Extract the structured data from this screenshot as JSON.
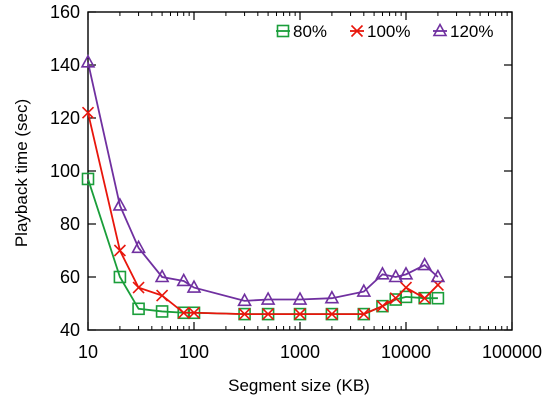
{
  "chart_data": {
    "type": "line",
    "xlabel": "Segment size (KB)",
    "ylabel": "Playback time (sec)",
    "xscale": "log",
    "xlim": [
      10,
      100000
    ],
    "ylim": [
      40,
      160
    ],
    "x_ticks": [
      10,
      100,
      1000,
      10000,
      100000
    ],
    "x_tick_labels": [
      "10",
      "100",
      "1000",
      "10000",
      "100000"
    ],
    "y_ticks": [
      40,
      60,
      80,
      100,
      120,
      140,
      160
    ],
    "y_tick_labels": [
      "40",
      "60",
      "80",
      "100",
      "120",
      "140",
      "160"
    ],
    "grid": false,
    "legend_position": "top-right",
    "series": [
      {
        "name": "80%",
        "color": "#1a9e3a",
        "marker": "square",
        "x": [
          10,
          20,
          30,
          50,
          80,
          100,
          300,
          500,
          1000,
          2000,
          4000,
          6000,
          8000,
          10000,
          15000,
          20000
        ],
        "y": [
          97,
          60,
          48,
          47,
          46.5,
          46.5,
          46,
          46,
          46,
          46,
          46,
          49,
          51.5,
          52.5,
          52,
          52
        ]
      },
      {
        "name": "100%",
        "color": "#e8160c",
        "marker": "x",
        "x": [
          10,
          20,
          30,
          50,
          80,
          100,
          300,
          500,
          1000,
          2000,
          4000,
          6000,
          8000,
          10000,
          15000,
          20000
        ],
        "y": [
          122,
          70,
          56,
          53,
          46.5,
          46.5,
          46,
          46,
          46,
          46,
          46,
          49,
          52,
          56,
          52,
          57
        ]
      },
      {
        "name": "120%",
        "color": "#7030a0",
        "marker": "triangle",
        "x": [
          10,
          20,
          30,
          50,
          80,
          100,
          300,
          500,
          1000,
          2000,
          4000,
          6000,
          8000,
          10000,
          15000,
          20000
        ],
        "y": [
          141,
          87,
          71,
          60,
          58.5,
          56,
          51,
          51.5,
          51.5,
          52,
          54.5,
          61,
          60,
          61,
          64.5,
          60
        ]
      }
    ]
  }
}
